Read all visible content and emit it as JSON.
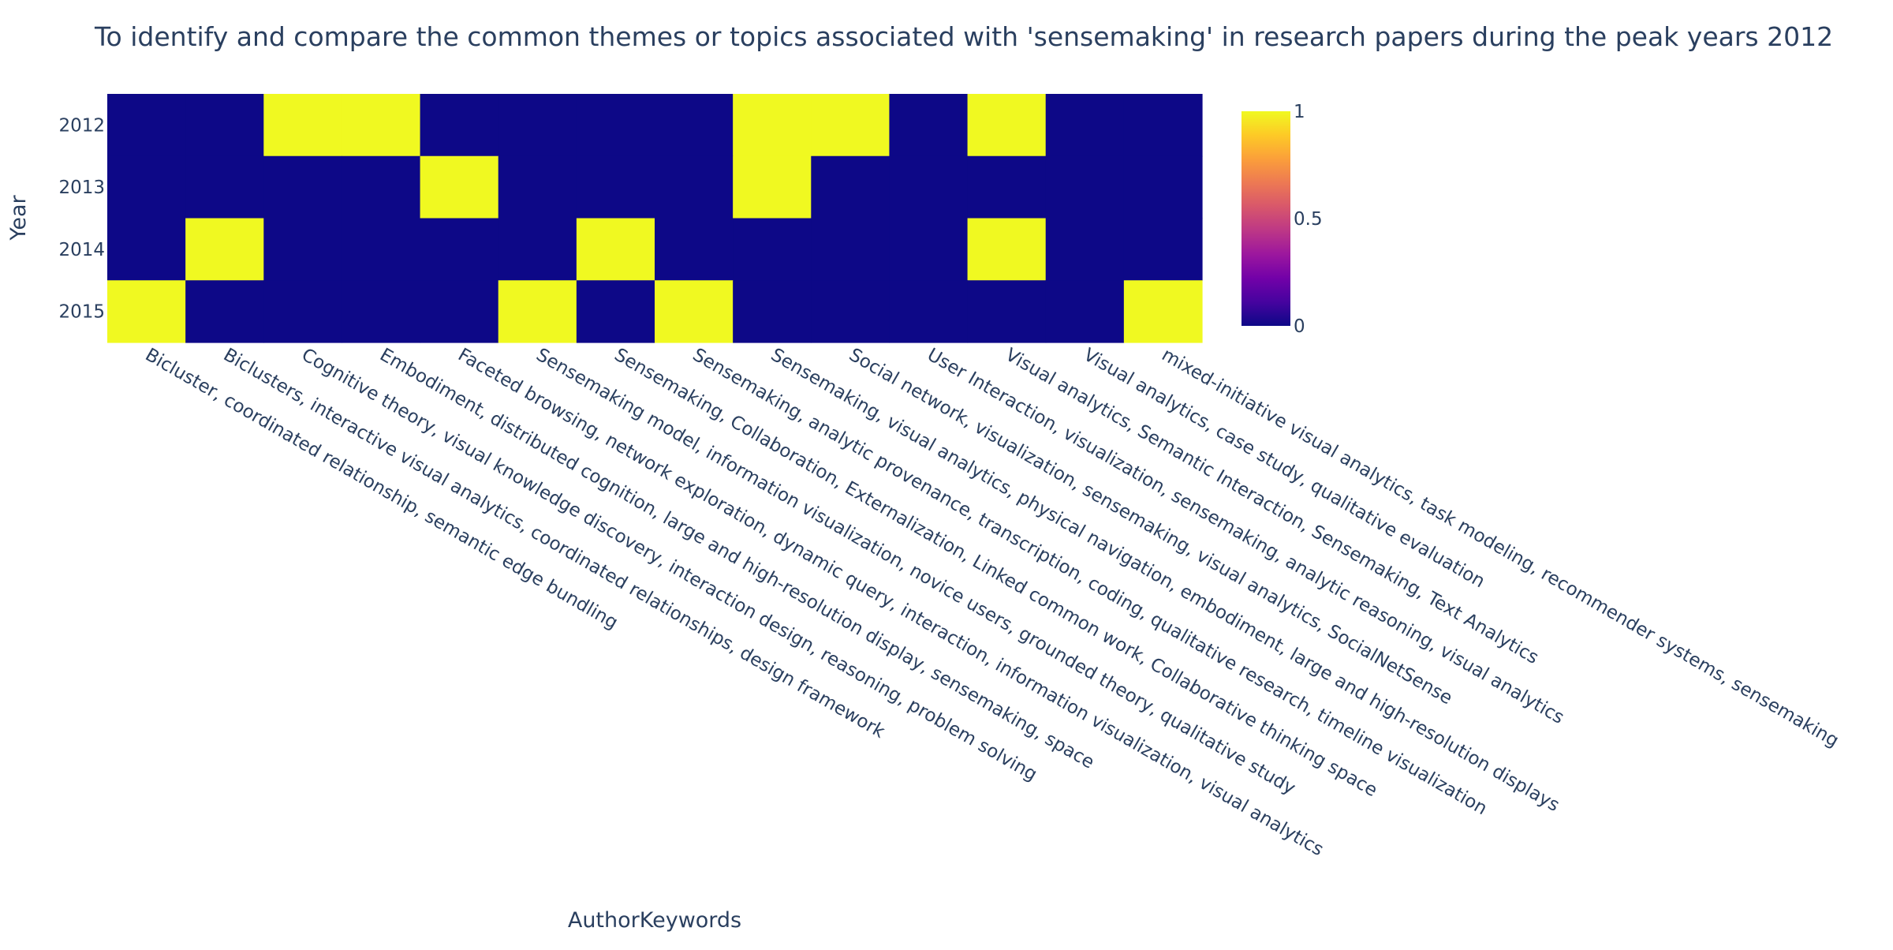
{
  "chart_data": {
    "type": "heatmap",
    "title": "To identify and compare the common themes or topics associated with 'sensemaking' in research papers during the peak years 2012",
    "xlabel": "AuthorKeywords",
    "ylabel": "Year",
    "x_categories": [
      "Bicluster, coordinated relationship, semantic edge bundling",
      "Biclusters, interactive visual analytics, coordinated relationships, design framework",
      "Cognitive theory, visual knowledge discovery, interaction design, reasoning, problem solving",
      "Embodiment, distributed cognition, large and high-resolution display, sensemaking, space",
      "Faceted browsing, network exploration, dynamic query, interaction, information visualization, visual analytics",
      "Sensemaking model, information visualization, novice users, grounded theory, qualitative study",
      "Sensemaking, Collaboration, Externalization, Linked common work, Collaborative thinking space",
      "Sensemaking, analytic provenance, transcription, coding, qualitative research, timeline visualization",
      "Sensemaking, visual analytics, physical navigation, embodiment, large and high-resolution displays",
      "Social network, visualization, sensemaking, visual analytics, SocialNetSense",
      "User Interaction, visualization, sensemaking, analytic reasoning, visual analytics",
      "Visual analytics, Semantic Interaction, Sensemaking, Text Analytics",
      "Visual analytics, case study, qualitative evaluation",
      "mixed-initiative visual analytics, task modeling, recommender systems, sensemaking"
    ],
    "y_categories": [
      "2012",
      "2013",
      "2014",
      "2015"
    ],
    "z": [
      [
        0,
        0,
        1,
        1,
        0,
        0,
        0,
        0,
        1,
        1,
        0,
        1,
        0,
        0
      ],
      [
        0,
        0,
        0,
        0,
        1,
        0,
        0,
        0,
        1,
        0,
        0,
        0,
        0,
        0
      ],
      [
        0,
        1,
        0,
        0,
        0,
        0,
        1,
        0,
        0,
        0,
        0,
        1,
        0,
        0
      ],
      [
        1,
        0,
        0,
        0,
        0,
        1,
        0,
        1,
        0,
        0,
        0,
        0,
        0,
        1
      ]
    ],
    "zrange": [
      0,
      1
    ],
    "colorscale": "Plasma",
    "colorbar_ticks": [
      "0",
      "0.5",
      "1"
    ],
    "colors": {
      "low": "#0d0887",
      "high": "#f0f921",
      "text": "#2a3f5f",
      "background": "#ffffff"
    }
  }
}
